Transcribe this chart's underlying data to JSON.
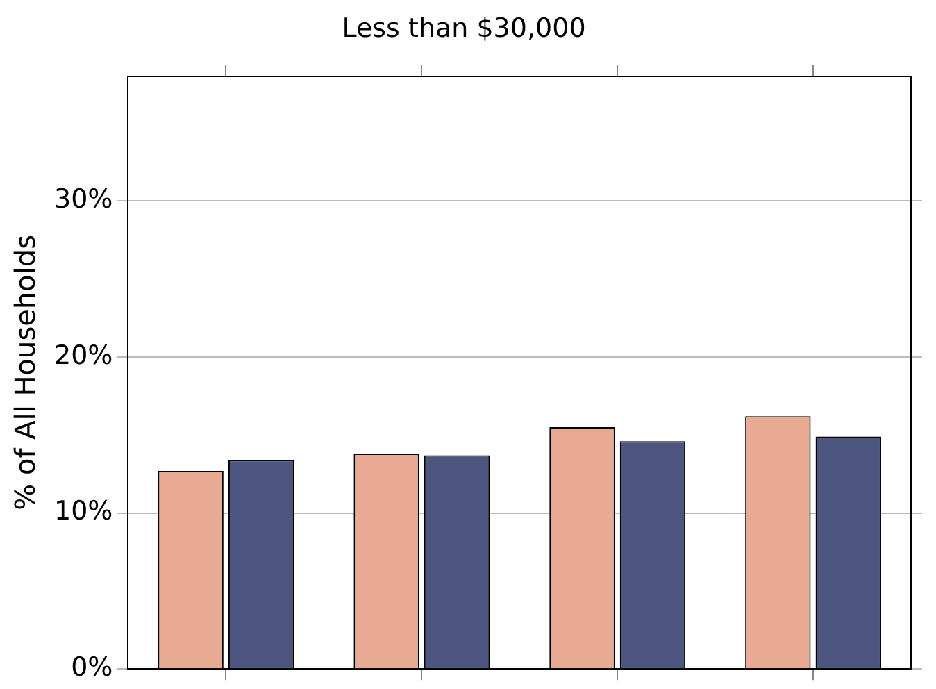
{
  "chart_data": {
    "type": "bar",
    "title": "Less than $30,000",
    "ylabel": "% of All Households",
    "categories": [
      null,
      null,
      null,
      null
    ],
    "series": [
      {
        "color": "#e8aa92",
        "values": [
          12.7,
          13.8,
          15.5,
          16.2
        ]
      },
      {
        "color": "#4d567f",
        "values": [
          13.4,
          13.7,
          14.6,
          14.9
        ]
      }
    ],
    "ylim": [
      0,
      38
    ],
    "yticks": [
      {
        "value": 0,
        "label": "0%"
      },
      {
        "value": 10,
        "label": "10%"
      },
      {
        "value": 20,
        "label": "20%"
      },
      {
        "value": 30,
        "label": "30%"
      }
    ],
    "grid": "y",
    "tick_labels": "y",
    "legend": false
  }
}
